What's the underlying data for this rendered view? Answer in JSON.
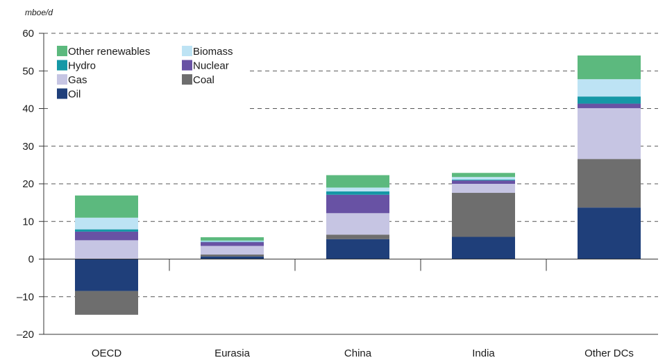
{
  "chart_data": {
    "type": "bar",
    "stacked": true,
    "unit_label": "mboe/d",
    "categories": [
      "OECD",
      "Eurasia",
      "China",
      "India",
      "Other DCs"
    ],
    "ylim": [
      -20,
      60
    ],
    "yticks": [
      -20,
      -10,
      0,
      10,
      20,
      30,
      40,
      50,
      60
    ],
    "grid": "dashed horizontal",
    "legend_position": "top-left",
    "series": [
      {
        "name": "Oil",
        "color": "#1f3f7a",
        "values": [
          -8.5,
          0.7,
          5.3,
          5.9,
          13.7
        ]
      },
      {
        "name": "Coal",
        "color": "#6e6e6e",
        "values": [
          -6.3,
          0.5,
          1.2,
          11.7,
          12.9
        ]
      },
      {
        "name": "Gas",
        "color": "#c6c5e3",
        "values": [
          5.0,
          2.3,
          5.7,
          2.4,
          13.5
        ]
      },
      {
        "name": "Nuclear",
        "color": "#6852a4",
        "values": [
          2.3,
          1.0,
          4.9,
          0.9,
          1.2
        ]
      },
      {
        "name": "Hydro",
        "color": "#1598a6",
        "values": [
          0.6,
          0.1,
          0.9,
          0.2,
          1.9
        ]
      },
      {
        "name": "Biomass",
        "color": "#bde3f4",
        "values": [
          3.1,
          0.3,
          1.0,
          0.7,
          4.6
        ]
      },
      {
        "name": "Other renewables",
        "color": "#5cb97e",
        "values": [
          5.9,
          0.9,
          3.3,
          1.1,
          6.3
        ]
      }
    ],
    "legend_order": [
      "Other renewables",
      "Biomass",
      "Hydro",
      "Nuclear",
      "Gas",
      "Coal",
      "Oil"
    ]
  }
}
